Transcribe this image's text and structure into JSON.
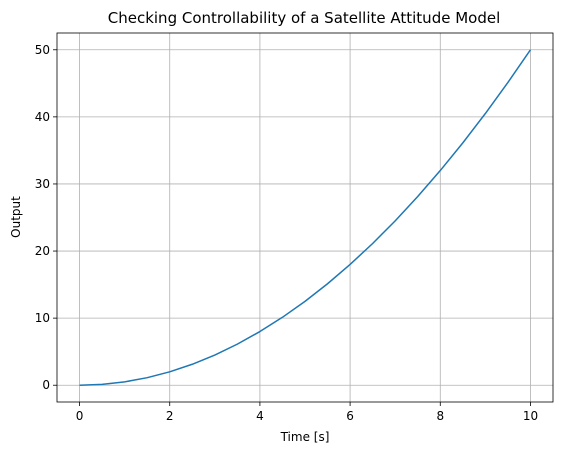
{
  "chart_data": {
    "type": "line",
    "title": "Checking Controllability of a Satellite Attitude Model",
    "xlabel": "Time [s]",
    "ylabel": "Output",
    "xlim": [
      -0.5,
      10.5
    ],
    "ylim": [
      -2.5,
      52.5
    ],
    "xticks": [
      0,
      2,
      4,
      6,
      8,
      10
    ],
    "yticks": [
      0,
      10,
      20,
      30,
      40,
      50
    ],
    "xtick_labels": [
      "0",
      "2",
      "4",
      "6",
      "8",
      "10"
    ],
    "ytick_labels": [
      "0",
      "10",
      "20",
      "30",
      "40",
      "50"
    ],
    "grid": true,
    "series": [
      {
        "color": "#1f77b4",
        "x": [
          0,
          0.5,
          1,
          1.5,
          2,
          2.5,
          3,
          3.5,
          4,
          4.5,
          5,
          5.5,
          6,
          6.5,
          7,
          7.5,
          8,
          8.5,
          9,
          9.5,
          10
        ],
        "y": [
          0,
          0.125,
          0.5,
          1.125,
          2,
          3.125,
          4.5,
          6.125,
          8,
          10.125,
          12.5,
          15.125,
          18,
          21.125,
          24.5,
          28.125,
          32,
          36.125,
          40.5,
          45.125,
          50
        ]
      }
    ]
  }
}
